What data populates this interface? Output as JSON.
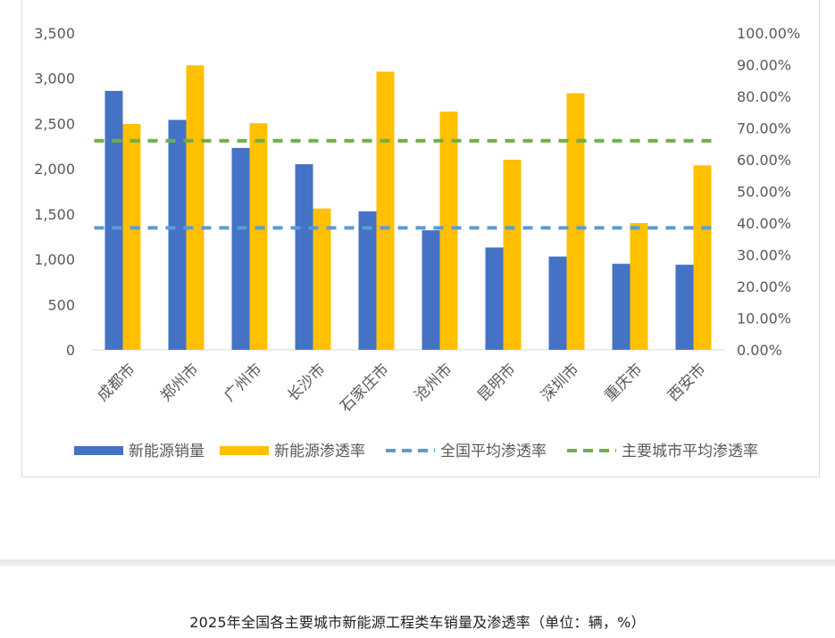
{
  "colors": {
    "nev_sales": "#4472C4",
    "nev_penetration": "#FFC000",
    "national_avg": "#5B9BD5",
    "major_city_avg": "#70AD47",
    "axis_text": "#595959",
    "gridline": "#d9d9d9"
  },
  "chart_data": {
    "type": "bar",
    "categories": [
      "成都市",
      "郑州市",
      "广州市",
      "长沙市",
      "石家庄市",
      "沧州市",
      "昆明市",
      "深圳市",
      "重庆市",
      "西安市"
    ],
    "series": [
      {
        "name": "新能源销量",
        "axis": "left",
        "type": "bar",
        "values": [
          2860,
          2540,
          2230,
          2050,
          1530,
          1320,
          1130,
          1030,
          950,
          940
        ]
      },
      {
        "name": "新能源渗透率",
        "axis": "right",
        "type": "bar",
        "unit": "%",
        "values": [
          71.3,
          89.8,
          71.5,
          44.6,
          87.8,
          75.2,
          60.0,
          81.0,
          40.0,
          58.2
        ]
      },
      {
        "name": "全国平均渗透率",
        "axis": "right",
        "type": "dashed-line",
        "unit": "%",
        "value": 38.5
      },
      {
        "name": "主要城市平均渗透率",
        "axis": "right",
        "type": "dashed-line",
        "unit": "%",
        "value": 66.0
      }
    ],
    "y_left": {
      "ylim": [
        0,
        3500
      ],
      "ticks": [
        0,
        500,
        1000,
        1500,
        2000,
        2500,
        3000,
        3500
      ],
      "tick_labels": [
        "0",
        "500",
        "1,000",
        "1,500",
        "2,000",
        "2,500",
        "3,000",
        "3,500"
      ]
    },
    "y_right": {
      "ylim": [
        0,
        100
      ],
      "ticks": [
        0,
        10,
        20,
        30,
        40,
        50,
        60,
        70,
        80,
        90,
        100
      ],
      "tick_labels": [
        "0.00%",
        "10.00%",
        "20.00%",
        "30.00%",
        "40.00%",
        "50.00%",
        "60.00%",
        "70.00%",
        "80.00%",
        "90.00%",
        "100.00%"
      ]
    },
    "grid": false,
    "legend_position": "bottom",
    "title": ""
  },
  "caption": "2025年全国各主要城市新能源工程类车销量及渗透率（单位：辆，%）"
}
